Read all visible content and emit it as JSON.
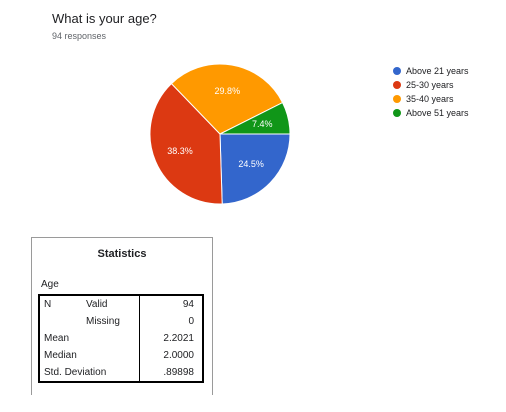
{
  "form": {
    "question": "What is your age?",
    "responses": "94 responses"
  },
  "chart_data": {
    "type": "pie",
    "categories": [
      "Above 21 years",
      "25-30 years",
      "35-40 years",
      "Above 51 years"
    ],
    "values": [
      24.5,
      38.3,
      29.8,
      7.4
    ],
    "labels": [
      "24.5%",
      "38.3%",
      "29.8%",
      "7.4%"
    ],
    "colors": [
      "#3366cc",
      "#dc3912",
      "#ff9900",
      "#109618"
    ],
    "legend_position": "right"
  },
  "stats": {
    "title": "Statistics",
    "variable": "Age",
    "rows": [
      {
        "label": "N",
        "sublabel": "Valid",
        "value": "94"
      },
      {
        "label": "",
        "sublabel": "Missing",
        "value": "0"
      },
      {
        "label": "Mean",
        "sublabel": "",
        "value": "2.2021"
      },
      {
        "label": "Median",
        "sublabel": "",
        "value": "2.0000"
      },
      {
        "label": "Std. Deviation",
        "sublabel": "",
        "value": ".89898"
      }
    ]
  }
}
